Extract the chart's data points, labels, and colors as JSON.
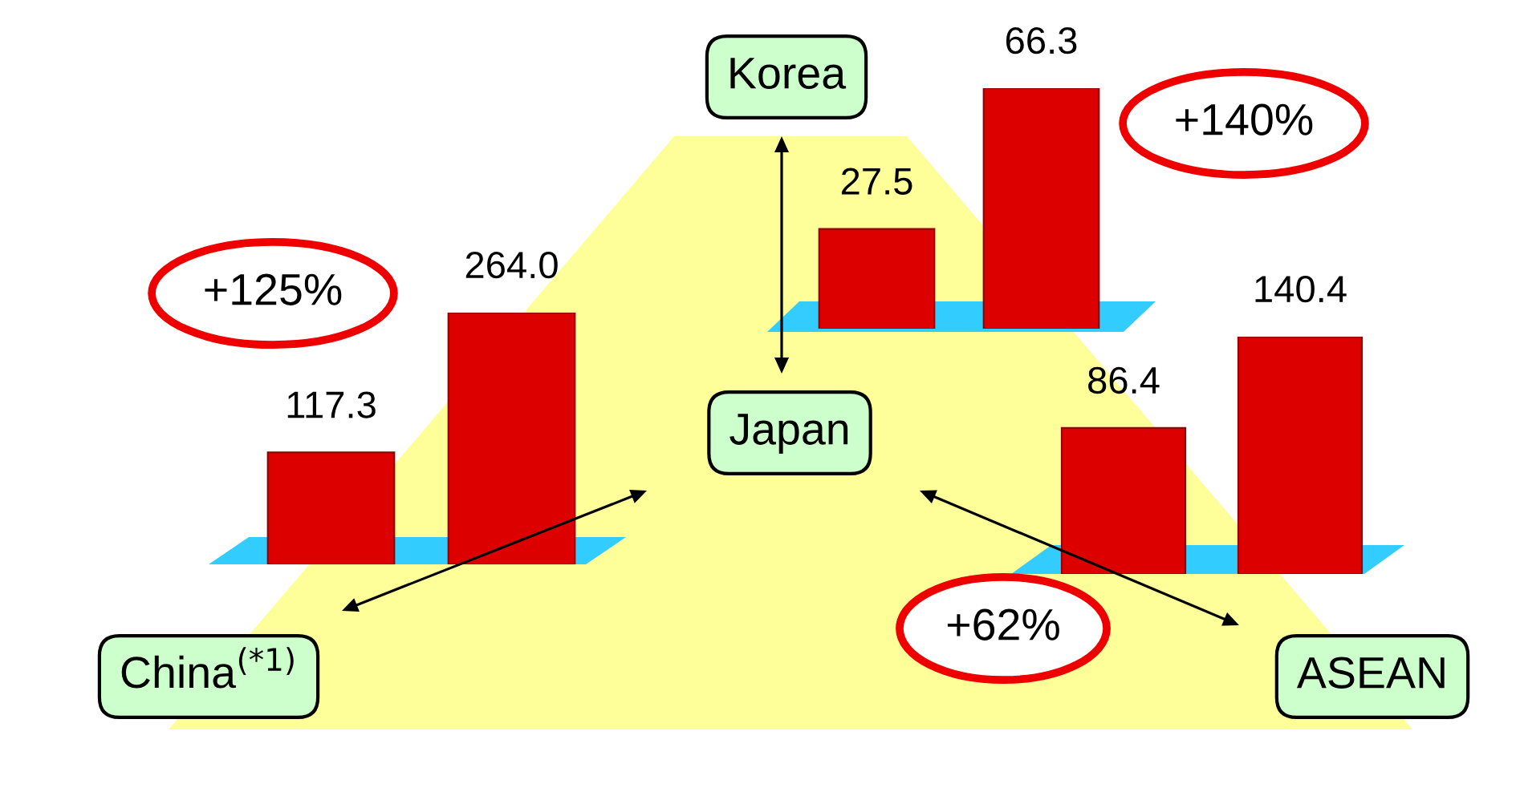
{
  "chart_data": [
    {
      "type": "bar",
      "categories": [
        null,
        null
      ],
      "values": [
        117.3,
        264.0
      ],
      "value_labels": [
        "117.3",
        "264.0"
      ],
      "color": "#dd0000",
      "annotations": [
        "China$^{(*1)}$",
        "+125%"
      ]
    },
    {
      "type": "bar",
      "categories": [
        null,
        null
      ],
      "values": [
        27.5,
        66.3
      ],
      "value_labels": [
        "27.5",
        "66.3"
      ],
      "color": "#dd0000",
      "annotations": [
        "Korea",
        "+140%"
      ]
    },
    {
      "type": "other",
      "annotations": [
        "Japan"
      ]
    },
    {
      "type": "bar",
      "categories": [
        null,
        null
      ],
      "values": [
        86.4,
        140.4
      ],
      "value_labels": [
        "86.4",
        "140.4"
      ],
      "color": "#dd0000",
      "annotations": [
        "ASEAN",
        "+62%"
      ]
    }
  ]
}
